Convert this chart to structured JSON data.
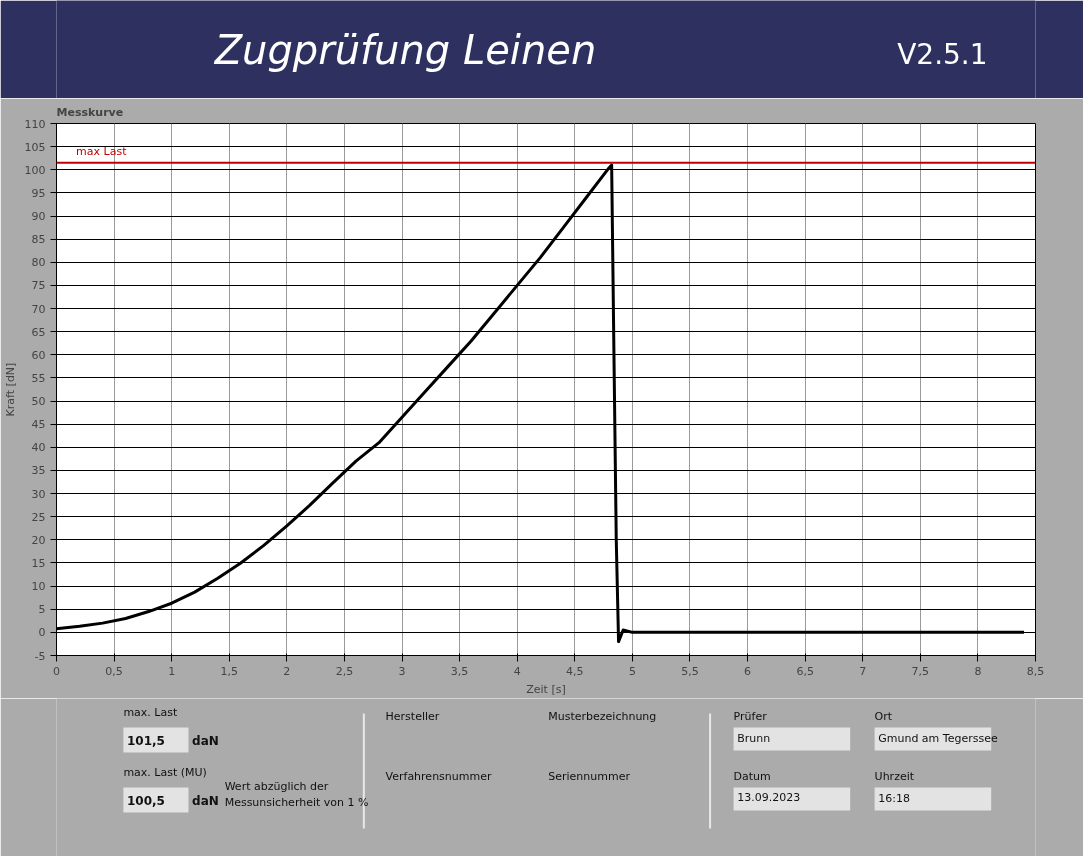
{
  "chart_data": {
    "type": "line",
    "title": "Zugprüfung Leinen",
    "subtitle": "Messkurve",
    "xlabel": "Zeit [s]",
    "ylabel": "Kraft [dN]",
    "x": [
      0,
      0.2,
      0.4,
      0.6,
      0.8,
      1.0,
      1.2,
      1.4,
      1.6,
      1.8,
      2.0,
      2.2,
      2.4,
      2.6,
      2.8,
      3.0,
      3.2,
      3.4,
      3.6,
      3.8,
      4.0,
      4.2,
      4.4,
      4.6,
      4.8,
      4.82,
      4.84,
      4.86,
      4.88,
      4.92,
      5.0,
      5.5,
      6.0,
      6.5,
      7.0,
      7.5,
      8.0,
      8.4
    ],
    "series": [
      {
        "color": "#000000",
        "values": [
          0.8,
          1.3,
          2,
          3,
          4.5,
          6.3,
          8.7,
          11.7,
          15,
          18.8,
          23,
          27.5,
          32.3,
          37,
          41,
          46.5,
          52,
          57.5,
          63,
          69,
          75,
          81,
          87.5,
          94,
          100.5,
          101,
          60,
          20,
          -2,
          0.5,
          0,
          0,
          0,
          0,
          0,
          0,
          0,
          0
        ]
      }
    ],
    "xlim": [
      0,
      8.5
    ],
    "ylim": [
      -5,
      110
    ],
    "xticks": [
      0,
      {
        "value": 0.5,
        "label": "0,5"
      },
      1,
      {
        "value": 1.5,
        "label": "1,5"
      },
      2,
      {
        "value": 2.5,
        "label": "2,5"
      },
      3,
      {
        "value": 3.5,
        "label": "3,5"
      },
      4,
      {
        "value": 4.5,
        "label": "4,5"
      },
      5,
      {
        "value": 5.5,
        "label": "5,5"
      },
      6,
      {
        "value": 6.5,
        "label": "6,5"
      },
      7,
      {
        "value": 7.5,
        "label": "7,5"
      },
      8,
      {
        "value": 8.5,
        "label": "8,5"
      }
    ],
    "yticks": [
      -5,
      0,
      5,
      10,
      15,
      20,
      25,
      30,
      35,
      40,
      45,
      50,
      55,
      60,
      65,
      70,
      75,
      80,
      85,
      90,
      95,
      100,
      105,
      110
    ],
    "grid": true,
    "line_style": "solid",
    "marker": "none",
    "ref_lines": [
      {
        "axis": "y",
        "value": 101.5,
        "label": "max Last",
        "color": "#c00000"
      }
    ],
    "annotations": [
      "max. Last",
      "101,5",
      "daN",
      "max. Last (MU)",
      "100,5",
      "daN",
      "Wert abzüglich der\nMessunsicherheit von 1 %",
      "Hersteller",
      "Musterbezeichnung",
      "Verfahrensnummer",
      "Seriennummer",
      "Prüfer",
      "Brunn",
      "Ort",
      "Gmund am Tegerssee",
      "Datum",
      "13.09.2023",
      "Uhrzeit",
      "16:18",
      "V2.5.1"
    ]
  }
}
